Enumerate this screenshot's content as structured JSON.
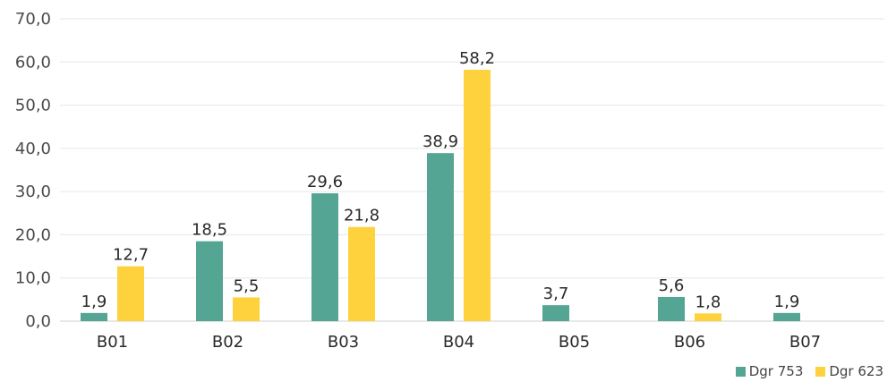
{
  "chart_data": {
    "type": "bar",
    "categories": [
      "B01",
      "B02",
      "B03",
      "B04",
      "B05",
      "B06",
      "B07"
    ],
    "series": [
      {
        "name": "Dgr 753",
        "color": "#55a595",
        "values": [
          1.9,
          18.5,
          29.6,
          38.9,
          3.7,
          5.6,
          1.9
        ],
        "labels": [
          "1,9",
          "18,5",
          "29,6",
          "38,9",
          "3,7",
          "5,6",
          "1,9"
        ]
      },
      {
        "name": "Dgr 623",
        "color": "#fed23c",
        "values": [
          12.7,
          5.5,
          21.8,
          58.2,
          null,
          1.8,
          null
        ],
        "labels": [
          "12,7",
          "5,5",
          "21,8",
          "58,2",
          "",
          "1,8",
          ""
        ]
      }
    ],
    "ylim": [
      0,
      70
    ],
    "yticks": [
      "0,0",
      "10,0",
      "20,0",
      "30,0",
      "40,0",
      "50,0",
      "60,0",
      "70,0"
    ],
    "grid": true,
    "legend_position": "bottom-right"
  }
}
